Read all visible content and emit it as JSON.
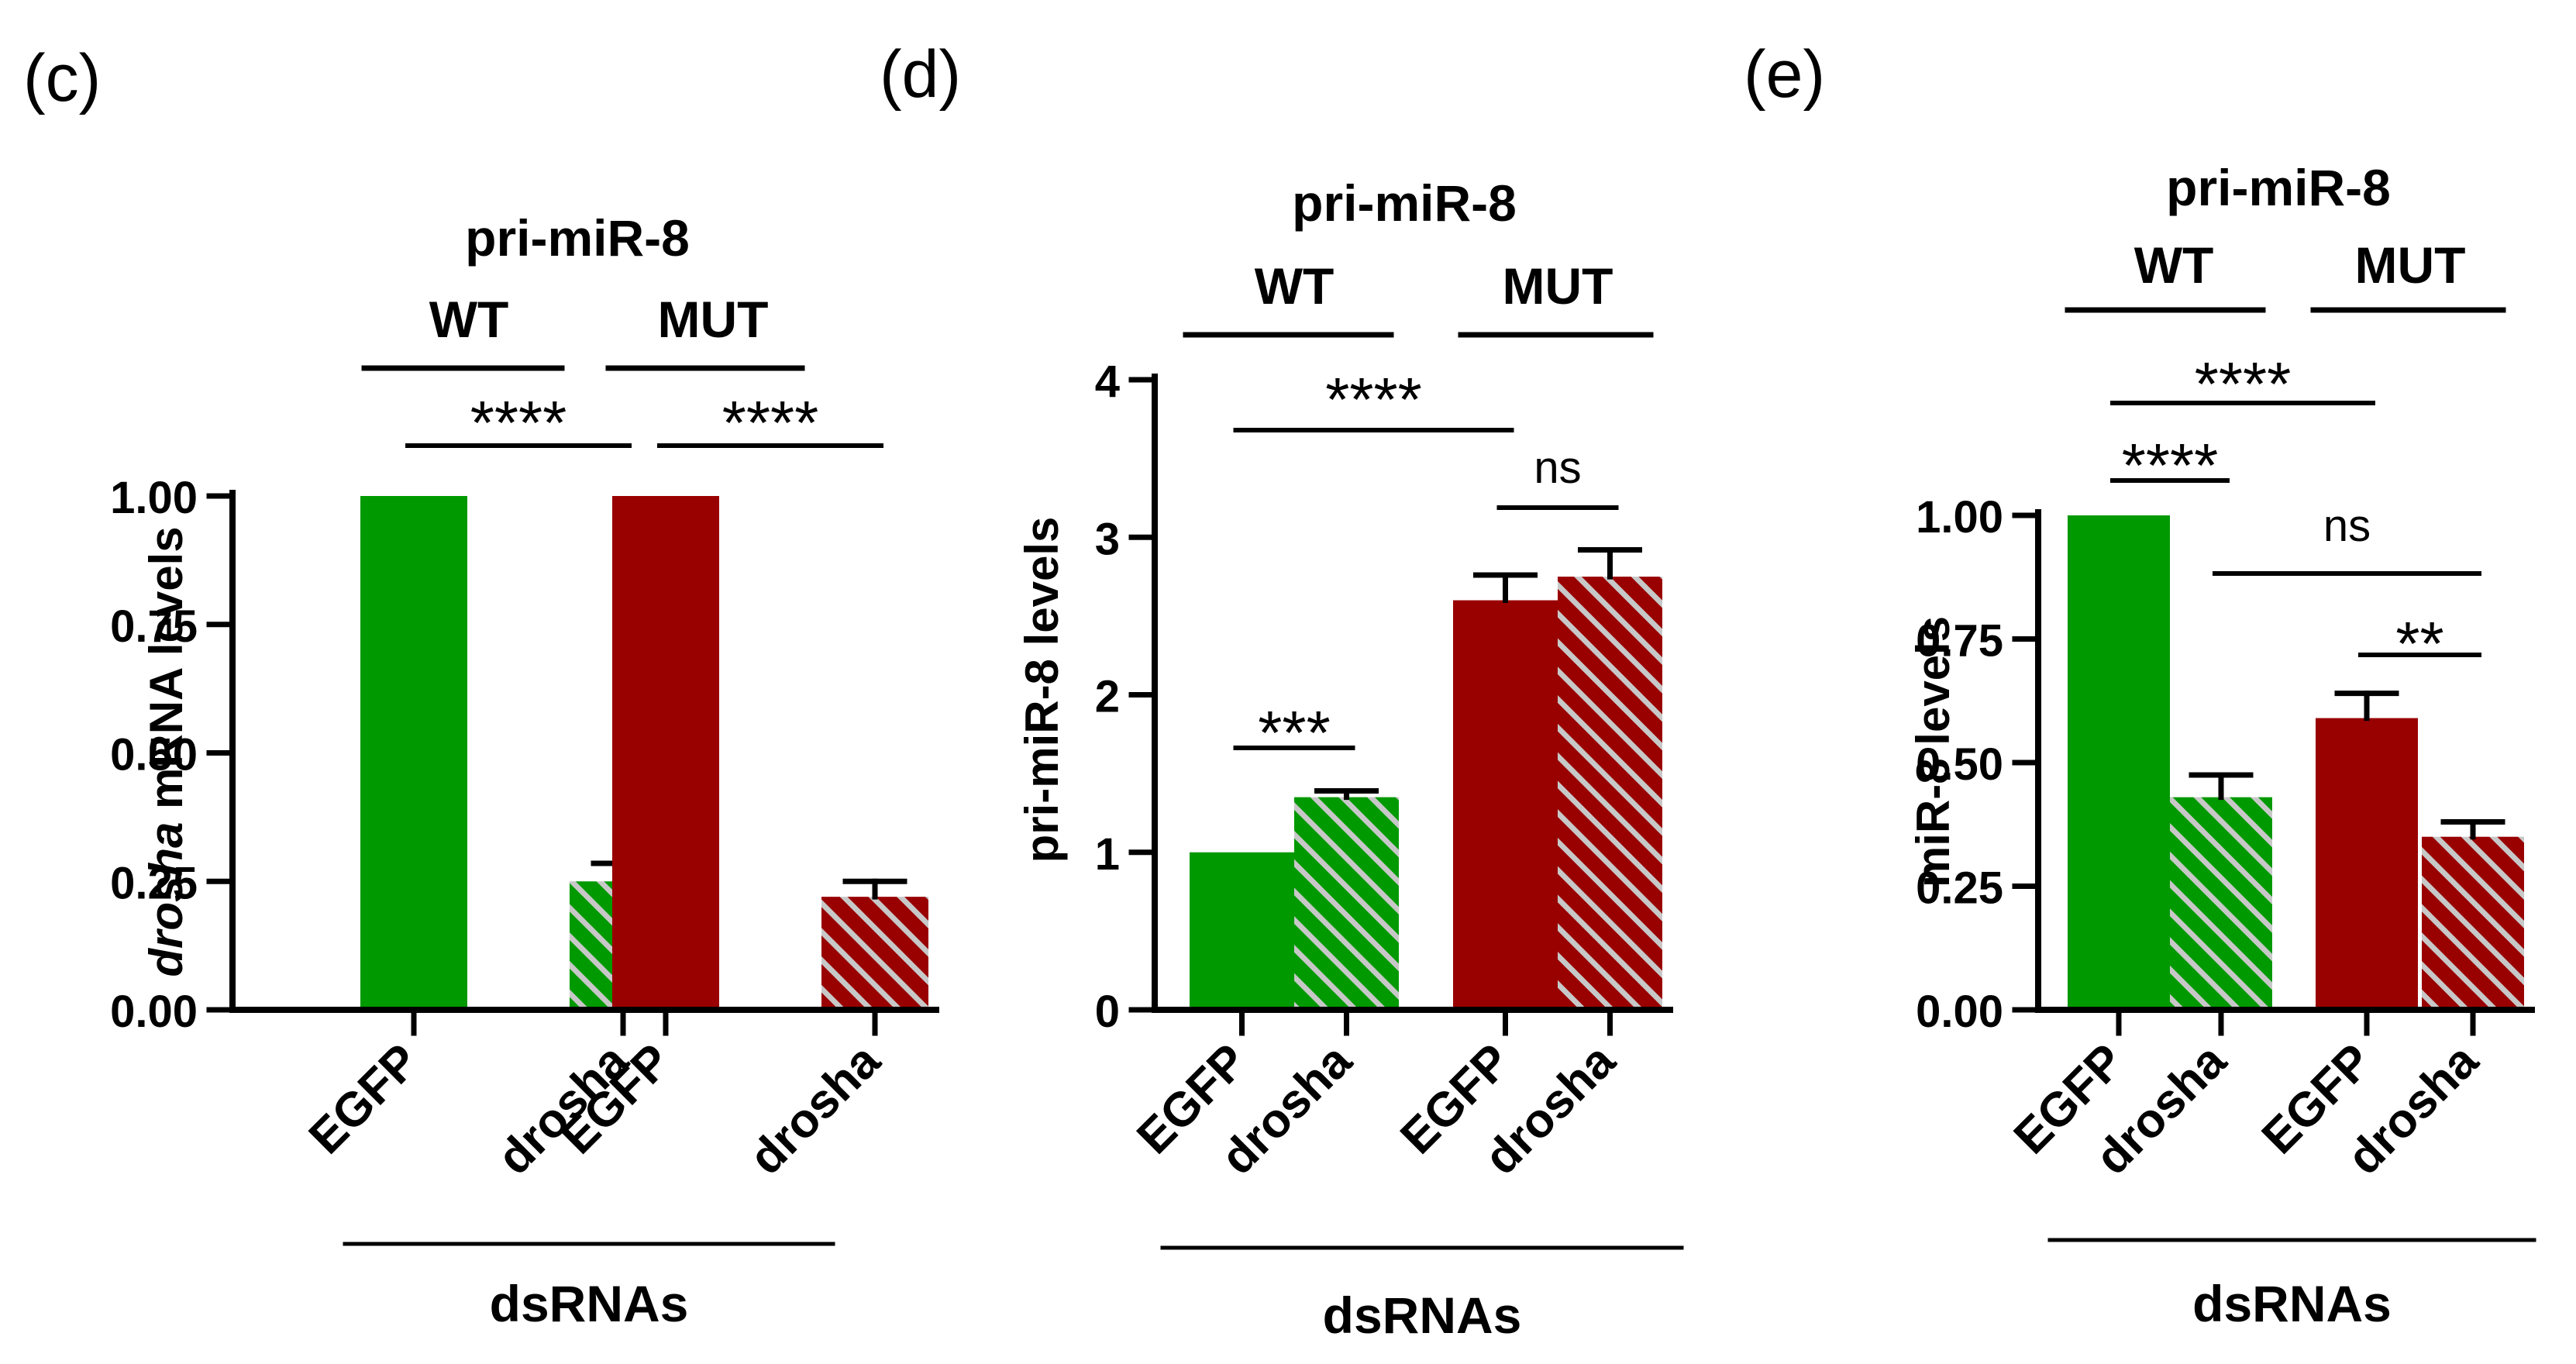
{
  "colors": {
    "wt": "#009900",
    "mut": "#990000",
    "hatch_stripe": "#c8c8c8",
    "line": "#000000"
  },
  "chart_data": [
    {
      "type": "bar",
      "panel_label": "(c)",
      "title": "pri-miR-8",
      "groups": [
        "WT",
        "MUT"
      ],
      "ylabel_italic": "drosha",
      "ylabel_rest": " mRNA levels",
      "xlabel": "dsRNAs",
      "categories": [
        "EGFP",
        "drosha",
        "EGFP",
        "drosha"
      ],
      "values": [
        1.0,
        0.25,
        1.0,
        0.22
      ],
      "errors": [
        0,
        0.035,
        0,
        0.03
      ],
      "hatched": [
        false,
        true,
        false,
        true
      ],
      "ylim": [
        0,
        1.0
      ],
      "yticks": [
        "0.00",
        "0.25",
        "0.50",
        "0.75",
        "1.00"
      ],
      "significance": [
        {
          "from": 0,
          "to": 1,
          "label": "****"
        },
        {
          "from": 2,
          "to": 3,
          "label": "****"
        }
      ]
    },
    {
      "type": "bar",
      "panel_label": "(d)",
      "title": "pri-miR-8",
      "groups": [
        "WT",
        "MUT"
      ],
      "ylabel": "pri-miR-8 levels",
      "xlabel": "dsRNAs",
      "categories": [
        "EGFP",
        "drosha",
        "EGFP",
        "drosha"
      ],
      "values": [
        1.0,
        1.35,
        2.6,
        2.75
      ],
      "errors": [
        0,
        0.04,
        0.16,
        0.17
      ],
      "hatched": [
        false,
        true,
        false,
        true
      ],
      "ylim": [
        0,
        4
      ],
      "yticks": [
        "0",
        "1",
        "2",
        "3",
        "4"
      ],
      "significance": [
        {
          "from": 0,
          "to": 1,
          "label": "***"
        },
        {
          "from": 0,
          "to": 2,
          "label": "****"
        },
        {
          "from": 2,
          "to": 3,
          "label": "ns"
        }
      ]
    },
    {
      "type": "bar",
      "panel_label": "(e)",
      "title": "pri-miR-8",
      "groups": [
        "WT",
        "MUT"
      ],
      "ylabel": "miR-8 levels",
      "xlabel": "dsRNAs",
      "categories": [
        "EGFP",
        "drosha",
        "EGFP",
        "drosha"
      ],
      "values": [
        1.0,
        0.43,
        0.59,
        0.35
      ],
      "errors": [
        0,
        0.045,
        0.05,
        0.03
      ],
      "hatched": [
        false,
        true,
        false,
        true
      ],
      "ylim": [
        0,
        1.0
      ],
      "yticks": [
        "0.00",
        "0.25",
        "0.50",
        "0.75",
        "1.00"
      ],
      "significance": [
        {
          "from": 0,
          "to": 1,
          "label": "****"
        },
        {
          "from": 0,
          "to": 2,
          "label": "****"
        },
        {
          "from": 1,
          "to": 3,
          "label": "ns"
        },
        {
          "from": 2,
          "to": 3,
          "label": "**"
        }
      ]
    }
  ]
}
